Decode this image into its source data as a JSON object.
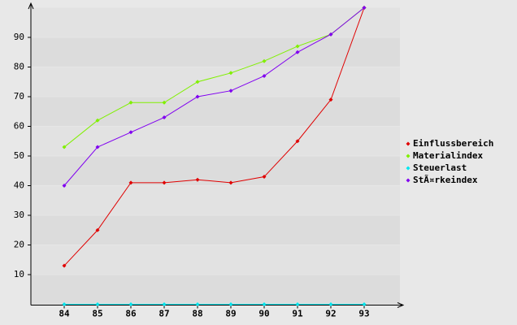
{
  "chart_data": {
    "type": "line",
    "categories": [
      "84",
      "85",
      "86",
      "87",
      "88",
      "89",
      "90",
      "91",
      "92",
      "93"
    ],
    "series": [
      {
        "name": "Einflussbereich",
        "color": "#e00000",
        "values": [
          13,
          25,
          41,
          41,
          42,
          41,
          43,
          55,
          69,
          100
        ]
      },
      {
        "name": "Materialindex",
        "color": "#80f000",
        "values": [
          53,
          62,
          68,
          68,
          75,
          78,
          82,
          87,
          91,
          100
        ]
      },
      {
        "name": "Steuerlast",
        "color": "#00e8f0",
        "values": [
          0,
          0,
          0,
          0,
          0,
          0,
          0,
          0,
          0,
          0
        ]
      },
      {
        "name": "StÃ¤rkeindex",
        "color": "#8000f0",
        "values": [
          40,
          53,
          58,
          63,
          70,
          72,
          77,
          85,
          91,
          100
        ]
      }
    ],
    "ylim": [
      0,
      100
    ],
    "yticks": [
      10,
      20,
      30,
      40,
      50,
      60,
      70,
      80,
      90
    ],
    "grid": true,
    "legend": "right"
  }
}
